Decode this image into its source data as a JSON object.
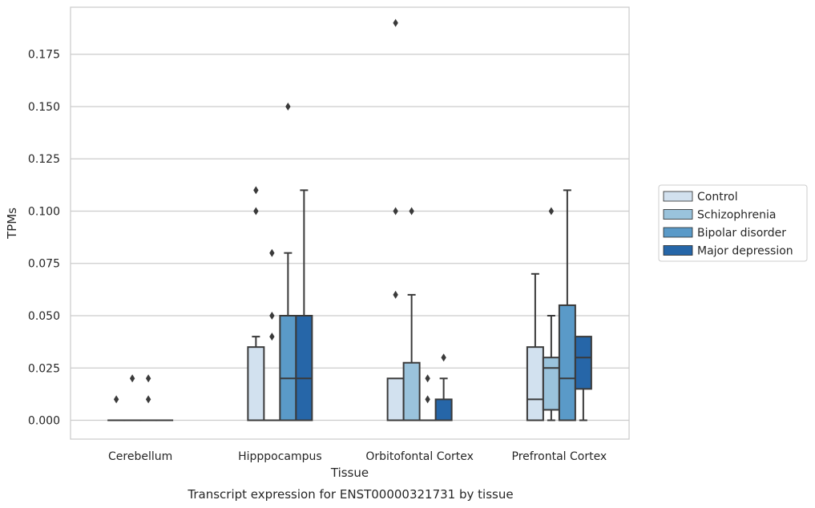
{
  "chart_data": {
    "type": "box",
    "caption": "Transcript expression for ENST00000321731 by tissue",
    "xlabel": "Tissue",
    "ylabel": "TPMs",
    "ylim": [
      -0.009,
      0.1975
    ],
    "yticks": [
      0.0,
      0.025,
      0.05,
      0.075,
      0.1,
      0.125,
      0.15,
      0.175
    ],
    "ytick_labels": [
      "0.000",
      "0.025",
      "0.050",
      "0.075",
      "0.100",
      "0.125",
      "0.150",
      "0.175"
    ],
    "grid": "horizontal",
    "legend_position": "right",
    "categories": [
      "Cerebellum",
      "Hipppocampus",
      "Orbitofontal Cortex",
      "Prefrontal Cortex"
    ],
    "series": [
      {
        "name": "Control",
        "color": "#d2e1ef",
        "boxes": [
          {
            "q1": 0,
            "median": 0,
            "q3": 0,
            "whisker_low": 0,
            "whisker_high": 0,
            "outliers": [
              0.01
            ]
          },
          {
            "q1": 0,
            "median": 0,
            "q3": 0.035,
            "whisker_low": 0,
            "whisker_high": 0.04,
            "outliers": [
              0.1,
              0.11
            ]
          },
          {
            "q1": 0,
            "median": 0,
            "q3": 0.02,
            "whisker_low": 0,
            "whisker_high": 0.02,
            "outliers": [
              0.06,
              0.1,
              0.19
            ]
          },
          {
            "q1": 0,
            "median": 0.01,
            "q3": 0.035,
            "whisker_low": 0,
            "whisker_high": 0.07,
            "outliers": []
          }
        ]
      },
      {
        "name": "Schizophrenia",
        "color": "#9ac3dc",
        "boxes": [
          {
            "q1": 0,
            "median": 0,
            "q3": 0,
            "whisker_low": 0,
            "whisker_high": 0,
            "outliers": [
              0.02
            ]
          },
          {
            "q1": 0,
            "median": 0,
            "q3": 0,
            "whisker_low": 0,
            "whisker_high": 0,
            "outliers": [
              0.04,
              0.05,
              0.08
            ]
          },
          {
            "q1": 0,
            "median": 0,
            "q3": 0.0275,
            "whisker_low": 0,
            "whisker_high": 0.06,
            "outliers": [
              0.1
            ]
          },
          {
            "q1": 0.005,
            "median": 0.025,
            "q3": 0.03,
            "whisker_low": 0,
            "whisker_high": 0.05,
            "outliers": [
              0.1
            ]
          }
        ]
      },
      {
        "name": "Bipolar disorder",
        "color": "#5a9ac8",
        "boxes": [
          {
            "q1": 0,
            "median": 0,
            "q3": 0,
            "whisker_low": 0,
            "whisker_high": 0,
            "outliers": [
              0.01,
              0.02
            ]
          },
          {
            "q1": 0,
            "median": 0.02,
            "q3": 0.05,
            "whisker_low": 0,
            "whisker_high": 0.08,
            "outliers": [
              0.15
            ]
          },
          {
            "q1": 0,
            "median": 0,
            "q3": 0,
            "whisker_low": 0,
            "whisker_high": 0,
            "outliers": [
              0.01,
              0.02
            ]
          },
          {
            "q1": 0,
            "median": 0.02,
            "q3": 0.055,
            "whisker_low": 0,
            "whisker_high": 0.11,
            "outliers": []
          }
        ]
      },
      {
        "name": "Major depression",
        "color": "#2666a8",
        "boxes": [
          {
            "q1": 0,
            "median": 0,
            "q3": 0,
            "whisker_low": 0,
            "whisker_high": 0,
            "outliers": []
          },
          {
            "q1": 0,
            "median": 0.02,
            "q3": 0.05,
            "whisker_low": 0,
            "whisker_high": 0.11,
            "outliers": []
          },
          {
            "q1": 0,
            "median": 0,
            "q3": 0.01,
            "whisker_low": 0,
            "whisker_high": 0.02,
            "outliers": [
              0.03
            ]
          },
          {
            "q1": 0.015,
            "median": 0.03,
            "q3": 0.04,
            "whisker_low": 0,
            "whisker_high": 0.04,
            "outliers": []
          }
        ]
      }
    ]
  }
}
